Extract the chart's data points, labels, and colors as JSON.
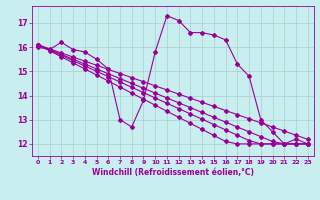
{
  "background_color": "#c8eef0",
  "line_color": "#990099",
  "grid_color": "#aacccc",
  "xlabel": "Windchill (Refroidissement éolien,°C)",
  "xlim": [
    -0.5,
    23.5
  ],
  "ylim": [
    11.5,
    17.7
  ],
  "yticks": [
    12,
    13,
    14,
    15,
    16,
    17
  ],
  "xticks": [
    0,
    1,
    2,
    3,
    4,
    5,
    6,
    7,
    8,
    9,
    10,
    11,
    12,
    13,
    14,
    15,
    16,
    17,
    18,
    19,
    20,
    21,
    22,
    23
  ],
  "series": [
    [
      16.0,
      15.9,
      16.2,
      15.9,
      15.8,
      15.5,
      15.1,
      13.0,
      12.7,
      13.8,
      15.8,
      17.3,
      17.1,
      16.6,
      16.6,
      16.5,
      16.3,
      15.3,
      14.8,
      13.0,
      12.5,
      12.0,
      12.2,
      12.0
    ],
    [
      16.1,
      15.85,
      15.6,
      15.35,
      15.1,
      14.85,
      14.6,
      14.35,
      14.1,
      13.85,
      13.6,
      13.35,
      13.1,
      12.85,
      12.6,
      12.35,
      12.1,
      12.0,
      12.0,
      12.0,
      12.0,
      12.0,
      12.0,
      12.0
    ],
    [
      16.1,
      15.88,
      15.66,
      15.44,
      15.22,
      15.0,
      14.78,
      14.56,
      14.34,
      14.12,
      13.9,
      13.68,
      13.46,
      13.24,
      13.02,
      12.8,
      12.58,
      12.36,
      12.14,
      12.0,
      12.0,
      12.0,
      12.0,
      12.0
    ],
    [
      16.1,
      15.9,
      15.7,
      15.5,
      15.3,
      15.1,
      14.9,
      14.7,
      14.5,
      14.3,
      14.1,
      13.9,
      13.7,
      13.5,
      13.3,
      13.1,
      12.9,
      12.7,
      12.5,
      12.3,
      12.1,
      12.0,
      12.0,
      12.0
    ],
    [
      16.1,
      15.93,
      15.76,
      15.59,
      15.42,
      15.25,
      15.08,
      14.91,
      14.74,
      14.57,
      14.4,
      14.23,
      14.06,
      13.89,
      13.72,
      13.55,
      13.38,
      13.21,
      13.04,
      12.87,
      12.7,
      12.53,
      12.36,
      12.19
    ]
  ],
  "marker": "D",
  "markersize": 2.0,
  "linewidth": 0.8
}
